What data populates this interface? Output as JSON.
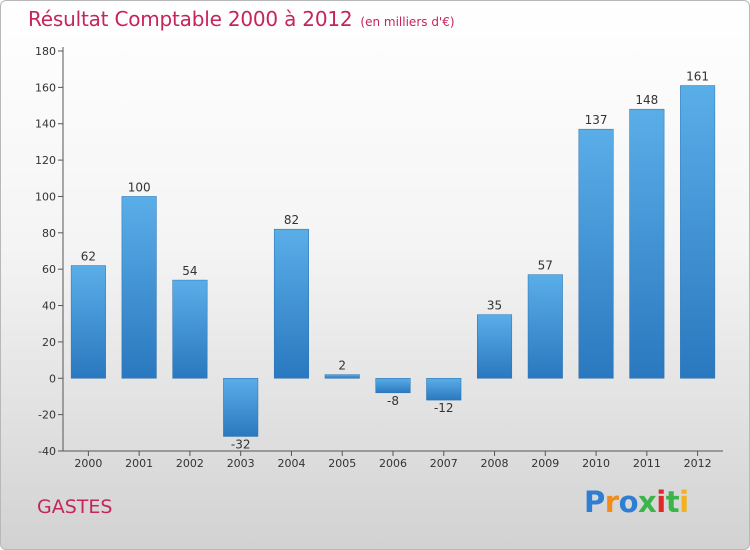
{
  "title": "Résultat Comptable 2000 à 2012",
  "subtitle": "(en milliers d'€)",
  "commune": "GASTES",
  "logo": {
    "letters": [
      "P",
      "r",
      "o",
      "x",
      "i",
      "t",
      "i"
    ],
    "colors": [
      "#2e7fd3",
      "#f18b1b",
      "#2e7fd3",
      "#3bb54a",
      "#e02a2a",
      "#3bb54a",
      "#f3b11c"
    ]
  },
  "colors": {
    "bar": "#3d8fd6",
    "title": "#c5245c"
  },
  "chart_data": {
    "type": "bar",
    "title": "Résultat Comptable 2000 à 2012",
    "subtitle": "(en milliers d'€)",
    "categories": [
      "2000",
      "2001",
      "2002",
      "2003",
      "2004",
      "2005",
      "2006",
      "2007",
      "2008",
      "2009",
      "2010",
      "2011",
      "2012"
    ],
    "values": [
      62,
      100,
      54,
      -32,
      82,
      2,
      -8,
      -12,
      35,
      57,
      137,
      148,
      161
    ],
    "xlabel": "",
    "ylabel": "",
    "ylim": [
      -40,
      180
    ],
    "yticks": [
      -40,
      -20,
      0,
      20,
      40,
      60,
      80,
      100,
      120,
      140,
      160,
      180
    ],
    "grid": false,
    "legend": "none"
  }
}
